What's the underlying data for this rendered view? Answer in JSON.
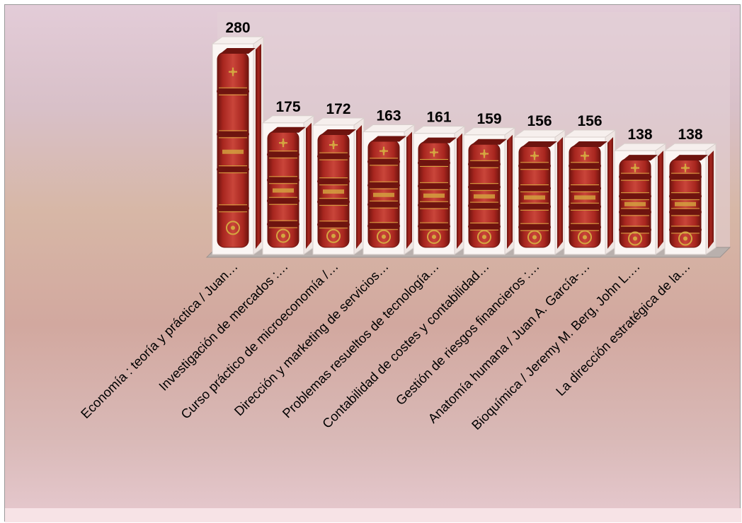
{
  "chart_data": {
    "type": "bar",
    "style": "3d-pictorial-book-spines",
    "categories": [
      "Economía : teoría y práctica / Juan…",
      "Investigación de mercados :…",
      "Curso práctico de microeconomía /…",
      "Dirección y marketing de servicios…",
      "Problemas resueltos de tecnología…",
      "Contabilidad de costes y contabilidad…",
      "Gestión de riesgos financieros :…",
      "Anatomía humana / Juan A. García-…",
      "Bioquímica / Jeremy M. Berg, John L.…",
      "La dirección estratégica de la…"
    ],
    "values": [
      280,
      175,
      172,
      163,
      161,
      159,
      156,
      156,
      138,
      138
    ],
    "ylim": [
      0,
      280
    ],
    "grid": false,
    "legend": "none",
    "colors": {
      "book": "#a8261f",
      "book_dark": "#6e140f",
      "book_light": "#c9453a",
      "gold": "#d4a640",
      "box_face": "#fbf6f4",
      "floor": "#b9b0ad",
      "back_wall": "#e3d2d7"
    }
  }
}
